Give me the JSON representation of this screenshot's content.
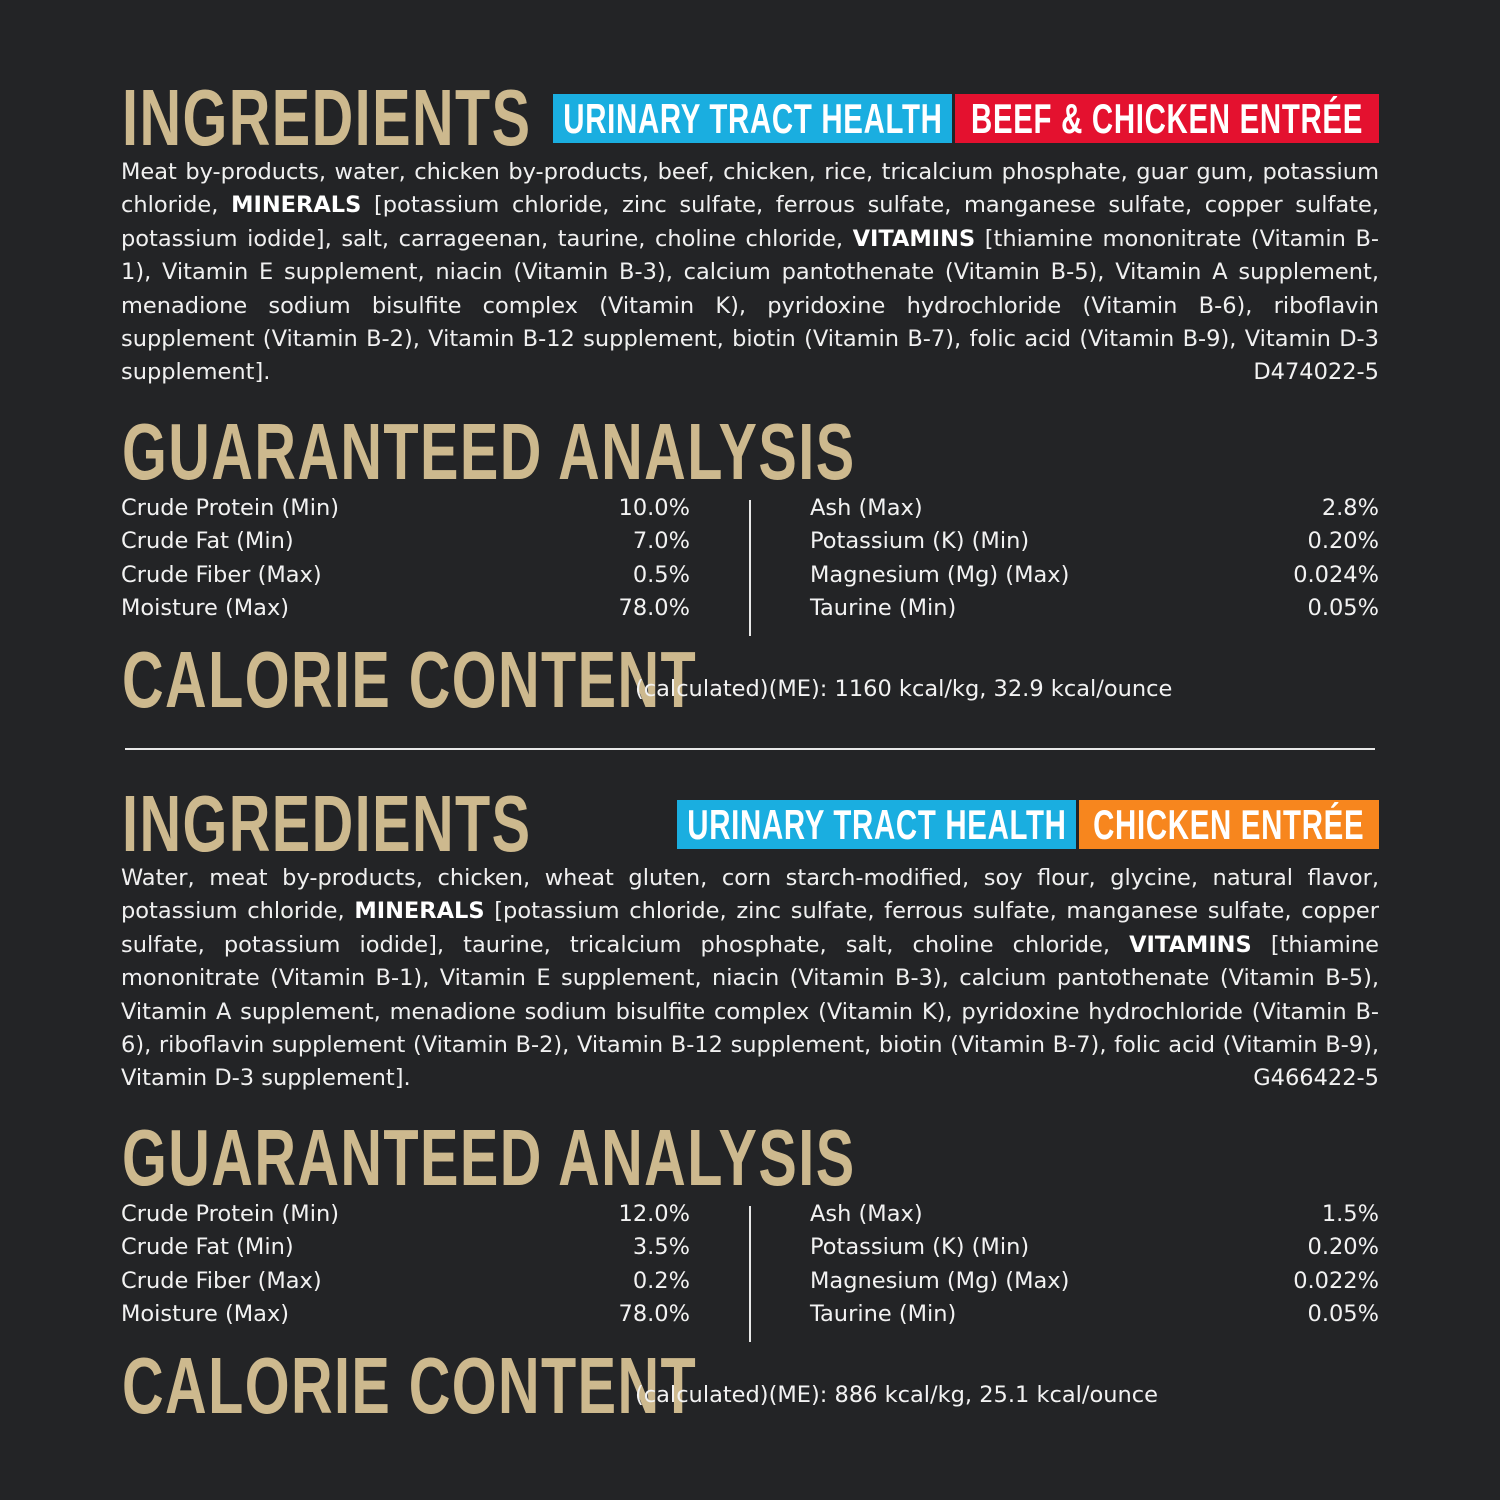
{
  "colors": {
    "background": "#232426",
    "heading": "#cdb98e",
    "badge_blue": "#1aaee0",
    "badge_red": "#e4112f",
    "badge_orange": "#f7861e"
  },
  "sections": [
    {
      "ingredients_title": "INGREDIENTS",
      "badge_health": "URINARY TRACT HEALTH",
      "badge_flavor": "BEEF & CHICKEN ENTRÉE",
      "ingredients": {
        "before": "Meat by-products, water, chicken by-products, beef, chicken, rice, tricalcium phosphate, guar gum, potassium chloride, ",
        "minerals_label": "MINERALS",
        "middle": " [potassium chloride, zinc sulfate, ferrous sulfate, manganese sulfate, copper sulfate, potassium iodide], salt, carrageenan, taurine, choline chloride, ",
        "vitamins_label": "VITAMINS",
        "after": " [thiamine mononitrate (Vitamin B-1), Vitamin E supplement, niacin (Vitamin B-3), calcium pantothenate (Vitamin B-5), Vitamin A supplement, menadione sodium bisulfite complex (Vitamin K), pyridoxine hydrochloride (Vitamin B-6), riboflavin supplement (Vitamin B-2), Vitamin B-12 supplement, biotin (Vitamin B-7), folic acid (Vitamin B-9), Vitamin D-3 supplement].",
        "code": "D474022-5"
      },
      "analysis_title": "GUARANTEED ANALYSIS",
      "analysis_left": [
        {
          "label": "Crude Protein (Min)",
          "value": "10.0%"
        },
        {
          "label": "Crude Fat (Min)",
          "value": "7.0%"
        },
        {
          "label": "Crude Fiber (Max)",
          "value": "0.5%"
        },
        {
          "label": "Moisture (Max)",
          "value": "78.0%"
        }
      ],
      "analysis_right": [
        {
          "label": "Ash (Max)",
          "value": "2.8%"
        },
        {
          "label": "Potassium (K) (Min)",
          "value": "0.20%"
        },
        {
          "label": "Magnesium (Mg) (Max)",
          "value": "0.024%"
        },
        {
          "label": "Taurine (Min)",
          "value": "0.05%"
        }
      ],
      "calorie_title": "CALORIE CONTENT",
      "calorie_text": "(calculated)(ME): 1160 kcal/kg, 32.9 kcal/ounce"
    },
    {
      "ingredients_title": "INGREDIENTS",
      "badge_health": "URINARY TRACT HEALTH",
      "badge_flavor": "CHICKEN ENTRÉE",
      "ingredients": {
        "before": "Water, meat by-products, chicken, wheat gluten, corn starch-modified, soy flour, glycine, natural flavor, potassium chloride, ",
        "minerals_label": "MINERALS",
        "middle": " [potassium chloride, zinc sulfate, ferrous sulfate, manganese sulfate, copper sulfate, potassium iodide], taurine, tricalcium phosphate, salt, choline chloride, ",
        "vitamins_label": "VITAMINS",
        "after": " [thiamine mononitrate (Vitamin B-1), Vitamin E supplement, niacin (Vitamin B-3), calcium pantothenate (Vitamin B-5), Vitamin A supplement, menadione sodium bisulfite complex (Vitamin K), pyridoxine hydrochloride (Vitamin B-6), riboflavin supplement (Vitamin B-2), Vitamin B-12 supplement, biotin (Vitamin B-7), folic acid (Vitamin B-9), Vitamin D-3 supplement].",
        "code": "G466422-5"
      },
      "analysis_title": "GUARANTEED ANALYSIS",
      "analysis_left": [
        {
          "label": "Crude Protein (Min)",
          "value": "12.0%"
        },
        {
          "label": "Crude Fat (Min)",
          "value": "3.5%"
        },
        {
          "label": "Crude Fiber (Max)",
          "value": "0.2%"
        },
        {
          "label": "Moisture (Max)",
          "value": "78.0%"
        }
      ],
      "analysis_right": [
        {
          "label": "Ash (Max)",
          "value": "1.5%"
        },
        {
          "label": "Potassium (K) (Min)",
          "value": "0.20%"
        },
        {
          "label": "Magnesium (Mg) (Max)",
          "value": "0.022%"
        },
        {
          "label": "Taurine (Min)",
          "value": "0.05%"
        }
      ],
      "calorie_title": "CALORIE CONTENT",
      "calorie_text": "(calculated)(ME): 886 kcal/kg, 25.1 kcal/ounce"
    }
  ]
}
